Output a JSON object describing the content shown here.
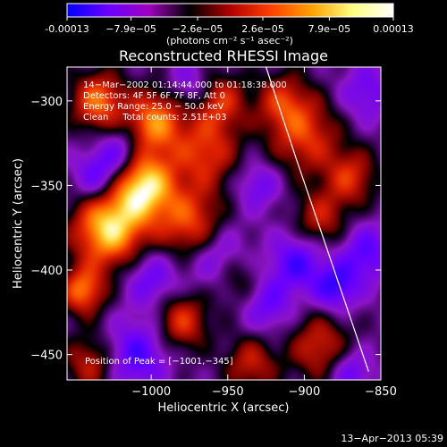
{
  "chart_data": {
    "type": "heatmap",
    "title": "Reconstructed RHESSI Image",
    "xlabel": "Heliocentric X (arcsec)",
    "ylabel": "Heliocentric Y (arcsec)",
    "xlim": [
      -1055,
      -850
    ],
    "ylim": [
      -465,
      -280
    ],
    "x_ticks": [
      -1000,
      -950,
      -900,
      -850
    ],
    "x_tick_labels": [
      "−1000",
      "−950",
      "−900",
      "−850"
    ],
    "y_ticks": [
      -300,
      -350,
      -400,
      -450
    ],
    "y_tick_labels": [
      "−300",
      "−350",
      "−400",
      "−450"
    ],
    "colorbar": {
      "ticks": [
        -0.00013,
        -7.9e-05,
        -2.6e-05,
        2.6e-05,
        7.9e-05,
        0.00013
      ],
      "tick_labels": [
        "-0.00013",
        "−7.9e−05",
        "−2.6e−05",
        "2.6e−05",
        "7.9e−05",
        "0.00013"
      ],
      "unit_label": "(photons cm⁻² s⁻¹ asec⁻²)",
      "colors": [
        "#0000ff",
        "#6a00ff",
        "#a000c0",
        "#000000",
        "#b00000",
        "#ff4000",
        "#ffa000",
        "#ffff80",
        "#ffffff"
      ]
    },
    "info_lines": [
      "14−Mar−2002 01:14:44.000 to 01:18:38.000",
      "Detectors: 4F 5F 6F 7F 8F, Att 0",
      "Energy Range: 25.0 − 50.0 keV",
      "Clean     Total counts: 2.51E+03"
    ],
    "peak_label": "Position of Peak = [−1001,−345]",
    "peak": [
      -1001,
      -345
    ],
    "limb_curve": [
      [
        -925,
        -280
      ],
      [
        -905,
        -335
      ],
      [
        -888,
        -380
      ],
      [
        -873,
        -420
      ],
      [
        -858,
        -460
      ]
    ],
    "blobs": [
      {
        "x": -1005,
        "y": -350,
        "v": 1.0,
        "s": 14
      },
      {
        "x": -1028,
        "y": -375,
        "v": 1.0,
        "s": 16
      },
      {
        "x": -998,
        "y": -312,
        "v": 0.75,
        "s": 13
      },
      {
        "x": -1035,
        "y": -300,
        "v": 0.7,
        "s": 12
      },
      {
        "x": -1045,
        "y": -412,
        "v": 0.7,
        "s": 10
      },
      {
        "x": -965,
        "y": -330,
        "v": 0.55,
        "s": 15
      },
      {
        "x": -975,
        "y": -372,
        "v": 0.6,
        "s": 15
      },
      {
        "x": -955,
        "y": -300,
        "v": 0.5,
        "s": 12
      },
      {
        "x": -980,
        "y": -430,
        "v": 0.55,
        "s": 12
      },
      {
        "x": -945,
        "y": -405,
        "v": 0.45,
        "s": 12
      },
      {
        "x": -900,
        "y": -320,
        "v": 0.55,
        "s": 16
      },
      {
        "x": -915,
        "y": -300,
        "v": 0.45,
        "s": 12
      },
      {
        "x": -870,
        "y": -345,
        "v": 0.5,
        "s": 12
      },
      {
        "x": -890,
        "y": -370,
        "v": 0.45,
        "s": 12
      },
      {
        "x": -935,
        "y": -455,
        "v": 0.45,
        "s": 12
      },
      {
        "x": -890,
        "y": -445,
        "v": 0.5,
        "s": 14
      },
      {
        "x": -1040,
        "y": -455,
        "v": 0.45,
        "s": 12
      },
      {
        "x": -1020,
        "y": -330,
        "v": -0.4,
        "s": 10
      },
      {
        "x": -1035,
        "y": -345,
        "v": -0.5,
        "s": 11
      },
      {
        "x": -1000,
        "y": -405,
        "v": -0.4,
        "s": 12
      },
      {
        "x": -955,
        "y": -395,
        "v": -0.45,
        "s": 14
      },
      {
        "x": -905,
        "y": -395,
        "v": -0.5,
        "s": 12
      },
      {
        "x": -860,
        "y": -390,
        "v": -0.45,
        "s": 12
      },
      {
        "x": -1010,
        "y": -450,
        "v": -0.5,
        "s": 14
      },
      {
        "x": -925,
        "y": -420,
        "v": -0.4,
        "s": 12
      },
      {
        "x": -930,
        "y": -350,
        "v": -0.35,
        "s": 10
      },
      {
        "x": -880,
        "y": -410,
        "v": -0.55,
        "s": 10
      },
      {
        "x": -860,
        "y": -295,
        "v": -0.35,
        "s": 12
      },
      {
        "x": -975,
        "y": -290,
        "v": -0.3,
        "s": 10
      },
      {
        "x": -870,
        "y": -460,
        "v": -0.4,
        "s": 10
      }
    ]
  },
  "footer": {
    "timestamp": "13−Apr−2013 05:39"
  }
}
